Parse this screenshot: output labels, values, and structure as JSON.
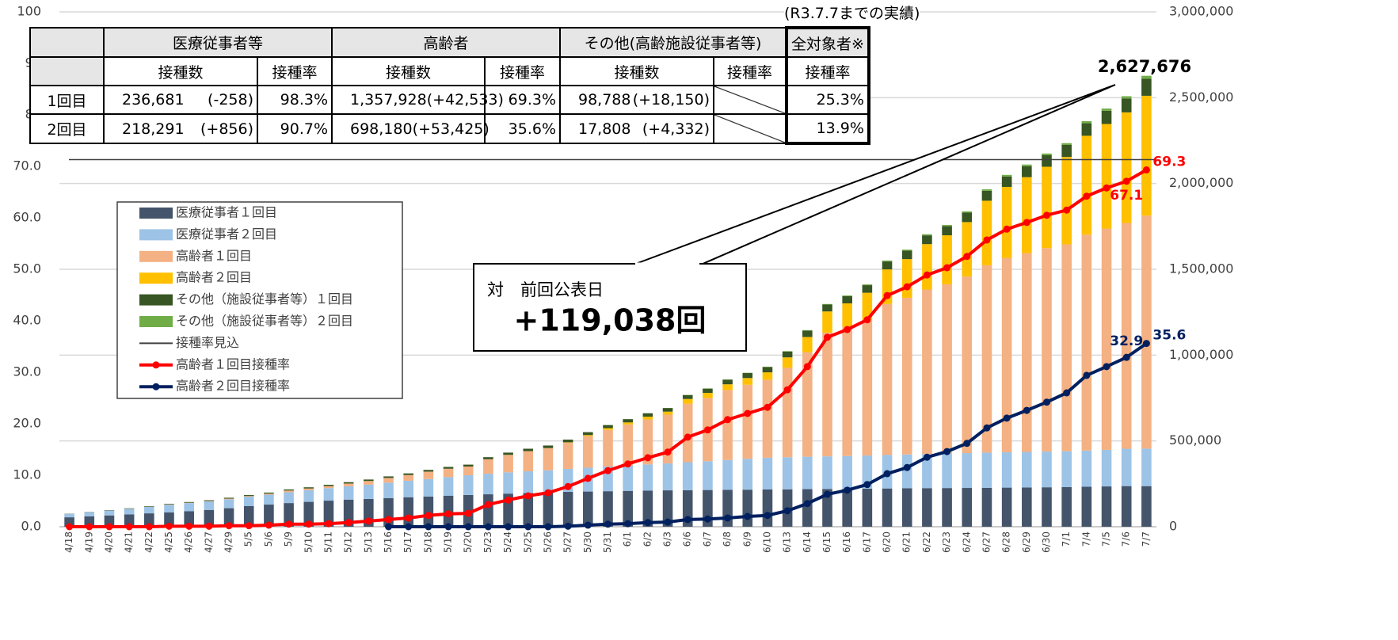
{
  "chart_data": {
    "type": "combo",
    "categories": [
      "4/18",
      "4/19",
      "4/20",
      "4/21",
      "4/22",
      "4/25",
      "4/26",
      "4/27",
      "4/29",
      "5/5",
      "5/6",
      "5/9",
      "5/10",
      "5/11",
      "5/12",
      "5/13",
      "5/16",
      "5/17",
      "5/18",
      "5/19",
      "5/20",
      "5/23",
      "5/24",
      "5/25",
      "5/26",
      "5/27",
      "5/30",
      "5/31",
      "6/1",
      "6/2",
      "6/3",
      "6/6",
      "6/7",
      "6/8",
      "6/9",
      "6/10",
      "6/13",
      "6/14",
      "6/15",
      "6/16",
      "6/17",
      "6/20",
      "6/21",
      "6/22",
      "6/23",
      "6/24",
      "6/27",
      "6/28",
      "6/29",
      "6/30",
      "7/1",
      "7/4",
      "7/5",
      "7/6",
      "7/7"
    ],
    "series": [
      {
        "name": "医療従事者１回目",
        "type": "bar",
        "axis": "y2",
        "color": "#44546a",
        "values": [
          55000,
          60000,
          66000,
          72000,
          78000,
          83000,
          90000,
          98000,
          108000,
          120000,
          129000,
          138000,
          145000,
          152000,
          158000,
          162000,
          167000,
          172000,
          176000,
          181000,
          185000,
          189000,
          193000,
          196000,
          199000,
          203000,
          205000,
          207000,
          209000,
          211000,
          212000,
          213000,
          214000,
          215000,
          216000,
          217000,
          218000,
          219000,
          220000,
          221000,
          222000,
          223000,
          224000,
          225000,
          225500,
          226000,
          227000,
          228000,
          229000,
          230000,
          231000,
          233000,
          235000,
          236939,
          236681
        ]
      },
      {
        "name": "医療従事者２回目",
        "type": "bar",
        "axis": "y2",
        "color": "#9dc3e6",
        "values": [
          20000,
          24000,
          28000,
          32000,
          38000,
          45000,
          48000,
          50000,
          52000,
          55000,
          58000,
          63000,
          68000,
          73000,
          78000,
          83000,
          90000,
          96000,
          102000,
          108000,
          115000,
          120000,
          124000,
          127000,
          130000,
          134000,
          139000,
          144000,
          148000,
          152000,
          157000,
          163000,
          168000,
          174000,
          180000,
          185000,
          187000,
          189000,
          190000,
          191000,
          193000,
          195000,
          197000,
          199000,
          201000,
          203000,
          205000,
          206000,
          207000,
          208000,
          209000,
          211000,
          213000,
          217435,
          218291
        ]
      },
      {
        "name": "高齢者１回目",
        "type": "bar",
        "axis": "y2",
        "color": "#f4b183",
        "values": [
          300,
          400,
          600,
          800,
          1000,
          2000,
          2000,
          2000,
          3900,
          3900,
          5900,
          9800,
          9800,
          11800,
          15700,
          21600,
          27400,
          33300,
          43100,
          49000,
          50900,
          84300,
          101900,
          117600,
          129300,
          152800,
          184200,
          213600,
          239100,
          262600,
          284100,
          341000,
          368400,
          407600,
          431100,
          454600,
          521200,
          609400,
          721100,
          750500,
          787700,
          879800,
          913100,
          958200,
          985600,
          1028700,
          1091400,
          1132600,
          1158100,
          1185500,
          1205100,
          1258000,
          1289400,
          1315395,
          1357928
        ]
      },
      {
        "name": "高齢者２回目",
        "type": "bar",
        "axis": "y2",
        "color": "#ffc000",
        "values": [
          0,
          0,
          0,
          0,
          0,
          0,
          0,
          0,
          0,
          0,
          0,
          0,
          0,
          0,
          0,
          0,
          0,
          0,
          0,
          0,
          0,
          0,
          0,
          0,
          0,
          2000,
          5900,
          9800,
          11800,
          15700,
          17600,
          27400,
          29400,
          33300,
          39200,
          43100,
          60700,
          88200,
          123400,
          139100,
          160700,
          201800,
          225300,
          264500,
          286100,
          317400,
          376200,
          413500,
          442800,
          474200,
          509500,
          576100,
          609400,
          644755,
          698180
        ]
      },
      {
        "name": "その他（施設従事者等）１回目",
        "type": "bar",
        "axis": "y2",
        "color": "#375623",
        "values": [
          1000,
          1500,
          2000,
          2500,
          3000,
          3500,
          4000,
          4500,
          5000,
          5500,
          6000,
          6500,
          7000,
          7500,
          8000,
          8500,
          9000,
          9500,
          10000,
          10500,
          11000,
          12000,
          13000,
          14000,
          15000,
          16000,
          17000,
          18000,
          19000,
          20000,
          21000,
          23000,
          25000,
          27000,
          29000,
          31000,
          34000,
          37000,
          40000,
          42000,
          44000,
          46000,
          49000,
          51000,
          53000,
          55000,
          58000,
          61000,
          64000,
          67000,
          70000,
          73000,
          77000,
          80638,
          98788
        ]
      },
      {
        "name": "その他（施設従事者等）２回目",
        "type": "bar",
        "axis": "y2",
        "color": "#70ad47",
        "values": [
          0,
          0,
          0,
          0,
          0,
          0,
          0,
          0,
          0,
          0,
          0,
          0,
          0,
          0,
          0,
          0,
          0,
          0,
          0,
          0,
          0,
          0,
          0,
          0,
          0,
          0,
          0,
          0,
          0,
          0,
          500,
          1000,
          1200,
          1500,
          1800,
          2000,
          2500,
          3000,
          3500,
          4000,
          4500,
          5500,
          6000,
          6500,
          7000,
          7500,
          8500,
          9000,
          9500,
          10000,
          10500,
          12000,
          13000,
          13476,
          17808
        ]
      },
      {
        "name": "高齢者１回目接種率",
        "type": "line",
        "color": "#ff0000",
        "values": [
          0,
          0,
          0,
          0,
          0,
          0.1,
          0.1,
          0.1,
          0.2,
          0.2,
          0.3,
          0.5,
          0.5,
          0.6,
          0.8,
          1.1,
          1.4,
          1.7,
          2.2,
          2.5,
          2.6,
          4.3,
          5.2,
          6.0,
          6.6,
          7.8,
          9.4,
          10.9,
          12.2,
          13.4,
          14.5,
          17.4,
          18.8,
          20.8,
          22.0,
          23.2,
          26.6,
          31.1,
          36.8,
          38.3,
          40.2,
          44.9,
          46.6,
          48.9,
          50.3,
          52.5,
          55.7,
          57.8,
          59.1,
          60.5,
          61.5,
          64.2,
          65.8,
          67.1,
          69.3
        ]
      },
      {
        "name": "高齢者２回目接種率",
        "type": "line",
        "color": "#002060",
        "values": [
          null,
          null,
          null,
          null,
          null,
          null,
          null,
          null,
          null,
          null,
          null,
          null,
          null,
          null,
          null,
          null,
          0,
          0,
          0,
          0,
          0,
          0,
          0,
          0,
          0,
          0.1,
          0.3,
          0.5,
          0.6,
          0.8,
          0.9,
          1.4,
          1.5,
          1.7,
          2.0,
          2.2,
          3.1,
          4.5,
          6.3,
          7.1,
          8.2,
          10.3,
          11.5,
          13.5,
          14.6,
          16.2,
          19.2,
          21.1,
          22.6,
          24.2,
          26.0,
          29.4,
          31.1,
          32.9,
          35.6
        ]
      }
    ],
    "reference_lines": [
      {
        "name": "接種率見込",
        "value": 71.3,
        "color": "#404040"
      }
    ],
    "ylim": [
      0,
      100
    ],
    "yticks": [
      {
        "value": 0,
        "label": "0.0"
      },
      {
        "value": 10,
        "label": "10.0"
      },
      {
        "value": 20,
        "label": "20.0"
      },
      {
        "value": 30,
        "label": "30.0"
      },
      {
        "value": 40,
        "label": "40.0"
      },
      {
        "value": 50,
        "label": "50.0"
      },
      {
        "value": 60,
        "label": "60.0"
      },
      {
        "value": 70,
        "label": "70.0"
      },
      80,
      90,
      100
    ],
    "y2lim": [
      0,
      3000000
    ],
    "y2ticks": [
      0,
      {
        "value": 500000,
        "label": "500,000"
      },
      {
        "value": 1000000,
        "label": "1,000,000"
      },
      {
        "value": 1500000,
        "label": "1,500,000"
      },
      {
        "value": 2000000,
        "label": "2,000,000"
      },
      {
        "value": 2500000,
        "label": "2,500,000"
      },
      {
        "value": 3000000,
        "label": "3,000,000"
      }
    ],
    "grid": true,
    "total_label": "2,627,676",
    "callout": {
      "title": "対　前回公表日",
      "value": "+119,038回"
    }
  },
  "table": {
    "note": "(R3.7.7までの実績)",
    "groups": [
      "医療従事者等",
      "高齢者",
      "その他(高齢施設従事者等)",
      "全対象者※"
    ],
    "subheaders": [
      "接種数",
      "接種率",
      "接種数",
      "接種率",
      "接種数",
      "接種率",
      "接種率"
    ],
    "rows": [
      {
        "label": "1回目",
        "cells": [
          "236,681",
          "(-258)",
          "98.3%",
          "1,357,928",
          "(+42,533)",
          "69.3%",
          "98,788",
          "(+18,150)",
          "25.3%"
        ]
      },
      {
        "label": "2回目",
        "cells": [
          "218,291",
          "(+856)",
          "90.7%",
          "698,180",
          "(+53,425)",
          "35.6%",
          "17,808",
          "(+4,332)",
          "13.9%"
        ]
      }
    ]
  }
}
